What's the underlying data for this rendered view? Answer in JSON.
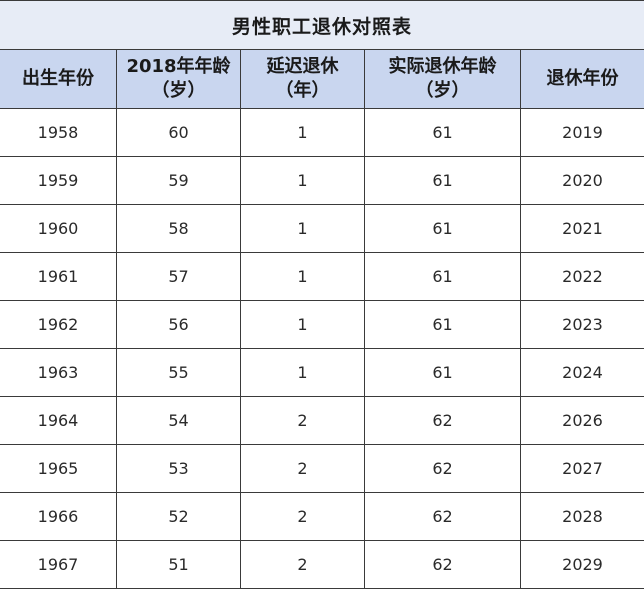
{
  "title": "男性职工退休对照表",
  "headers": [
    {
      "line1": "出生年份",
      "line2": ""
    },
    {
      "line1": "2018年年龄",
      "line2": "（岁）"
    },
    {
      "line1": "延迟退休",
      "line2": "（年）"
    },
    {
      "line1": "实际退休年龄",
      "line2": "（岁）"
    },
    {
      "line1": "退休年份",
      "line2": ""
    }
  ],
  "rows": [
    [
      "1958",
      "60",
      "1",
      "61",
      "2019"
    ],
    [
      "1959",
      "59",
      "1",
      "61",
      "2020"
    ],
    [
      "1960",
      "58",
      "1",
      "61",
      "2021"
    ],
    [
      "1961",
      "57",
      "1",
      "61",
      "2022"
    ],
    [
      "1962",
      "56",
      "1",
      "61",
      "2023"
    ],
    [
      "1963",
      "55",
      "1",
      "61",
      "2024"
    ],
    [
      "1964",
      "54",
      "2",
      "62",
      "2026"
    ],
    [
      "1965",
      "53",
      "2",
      "62",
      "2027"
    ],
    [
      "1966",
      "52",
      "2",
      "62",
      "2028"
    ],
    [
      "1967",
      "51",
      "2",
      "62",
      "2029"
    ]
  ]
}
